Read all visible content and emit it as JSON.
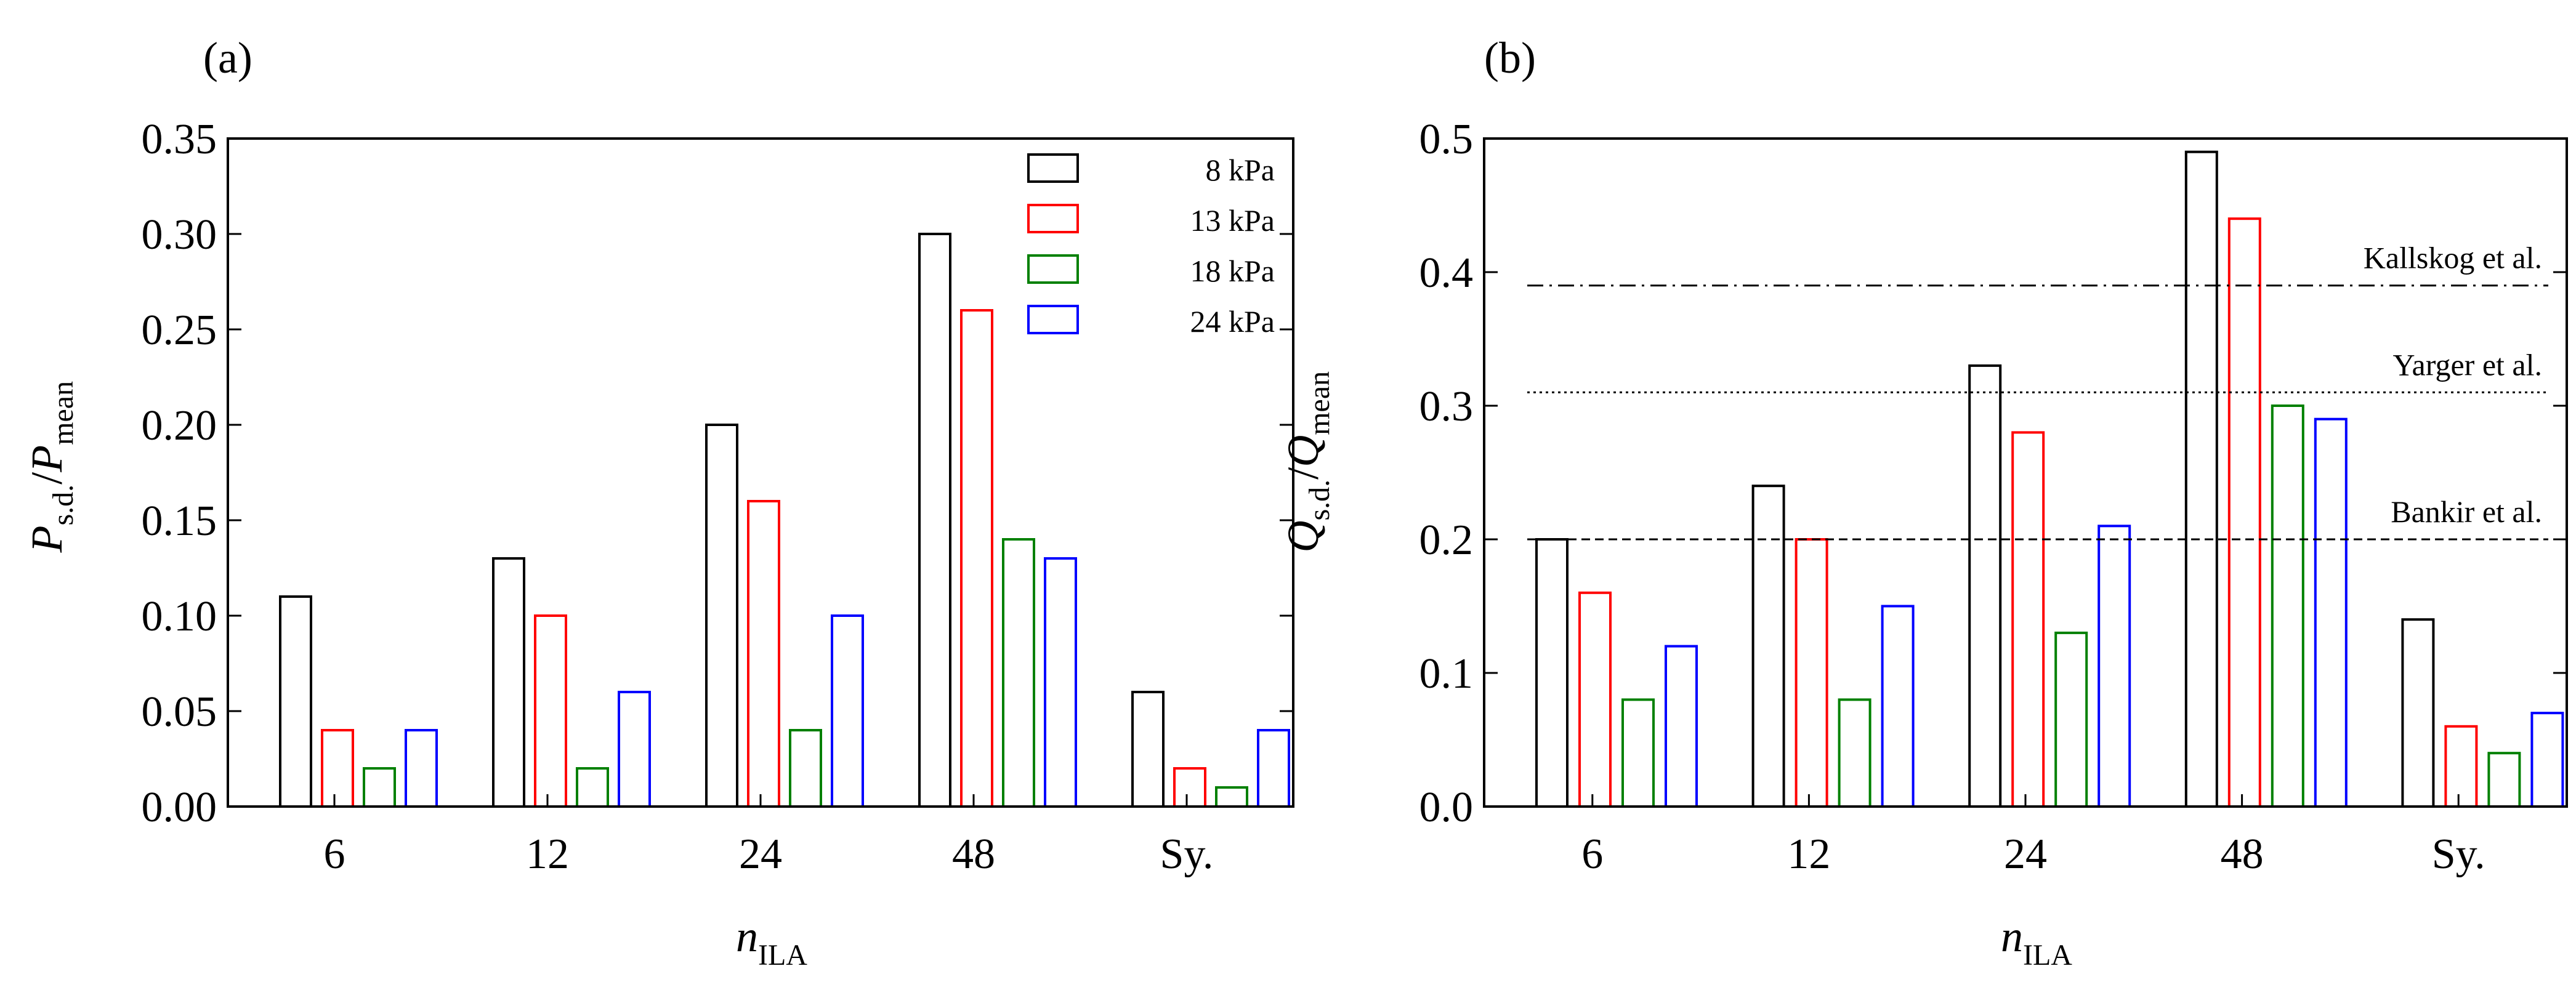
{
  "colors": [
    "#000000",
    "#ff0000",
    "#008000",
    "#0000ff"
  ],
  "chart_data": [
    {
      "type": "bar",
      "panel_label": "(a)",
      "categories": [
        "6",
        "12",
        "24",
        "48",
        "Sy."
      ],
      "series": [
        {
          "name": "8 kPa",
          "values": [
            0.11,
            0.13,
            0.2,
            0.3,
            0.06
          ]
        },
        {
          "name": "13 kPa",
          "values": [
            0.04,
            0.1,
            0.16,
            0.26,
            0.02
          ]
        },
        {
          "name": "18 kPa",
          "values": [
            0.02,
            0.02,
            0.04,
            0.14,
            0.01
          ]
        },
        {
          "name": "24 kPa",
          "values": [
            0.04,
            0.06,
            0.1,
            0.13,
            0.04
          ]
        }
      ],
      "xlabel": {
        "main": "n",
        "sub": "ILA"
      },
      "ylabel": {
        "main": "P",
        "sub": "s.d.",
        "sep": "/",
        "main2": "P",
        "sub2": "mean"
      },
      "ylim": [
        0,
        0.35
      ],
      "yticks": [
        "0.00",
        "0.05",
        "0.10",
        "0.15",
        "0.20",
        "0.25",
        "0.30",
        "0.35"
      ],
      "legend_position": "top-right",
      "reference_lines": []
    },
    {
      "type": "bar",
      "panel_label": "(b)",
      "categories": [
        "6",
        "12",
        "24",
        "48",
        "Sy."
      ],
      "series": [
        {
          "name": "8 kPa",
          "values": [
            0.2,
            0.24,
            0.33,
            0.49,
            0.14
          ]
        },
        {
          "name": "13 kPa",
          "values": [
            0.16,
            0.2,
            0.28,
            0.44,
            0.06
          ]
        },
        {
          "name": "18 kPa",
          "values": [
            0.08,
            0.08,
            0.13,
            0.3,
            0.04
          ]
        },
        {
          "name": "24 kPa",
          "values": [
            0.12,
            0.15,
            0.21,
            0.29,
            0.07
          ]
        }
      ],
      "xlabel": {
        "main": "n",
        "sub": "ILA"
      },
      "ylabel": {
        "main": "Q",
        "sub": "s.d.",
        "sep": "/",
        "main2": "Q",
        "sub2": "mean"
      },
      "ylim": [
        0,
        0.5
      ],
      "yticks": [
        "0.0",
        "0.1",
        "0.2",
        "0.3",
        "0.4",
        "0.5"
      ],
      "legend_position": "none",
      "reference_lines": [
        {
          "label": "Kallskog et al.",
          "value": 0.39,
          "style": "dashdot"
        },
        {
          "label": "Yarger et al.",
          "value": 0.31,
          "style": "dotted"
        },
        {
          "label": "Bankir et al.",
          "value": 0.2,
          "style": "dashed"
        }
      ]
    }
  ]
}
